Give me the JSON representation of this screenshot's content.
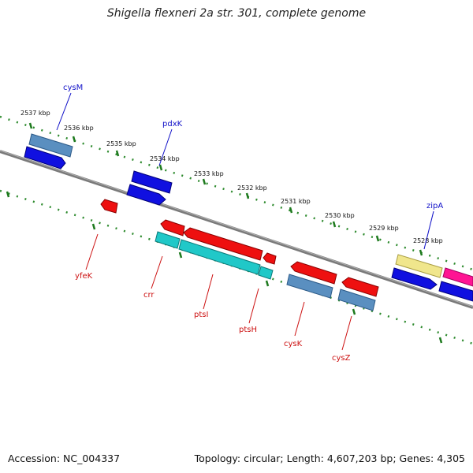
{
  "title": "Shigella flexneri 2a str. 301, complete genome",
  "accession_text": "Accession: NC_004337",
  "summary_text": "Topology: circular; Length: 4,607,203 bp; Genes: 4,305",
  "colors": {
    "backbone": "#808080",
    "dots": "#2e8b2e",
    "forward_label": "#1010c8",
    "reverse_label": "#cc1010",
    "blue": "#1010e0",
    "steelblue": "#5a8fc0",
    "red": "#ee1010",
    "cyan": "#20c8c8",
    "khaki": "#f0e68c",
    "magenta": "#ff1493"
  },
  "ticks": [
    "2537 kbp",
    "2536 kbp",
    "2535 kbp",
    "2534 kbp",
    "2533 kbp",
    "2532 kbp",
    "2531 kbp",
    "2530 kbp",
    "2529 kbp",
    "2528 kbp"
  ],
  "forward_labels": [
    "cysM",
    "pdxK",
    "zipA"
  ],
  "reverse_labels": [
    "yfeK",
    "crr",
    "ptsI",
    "ptsH",
    "cysK",
    "cysZ"
  ]
}
